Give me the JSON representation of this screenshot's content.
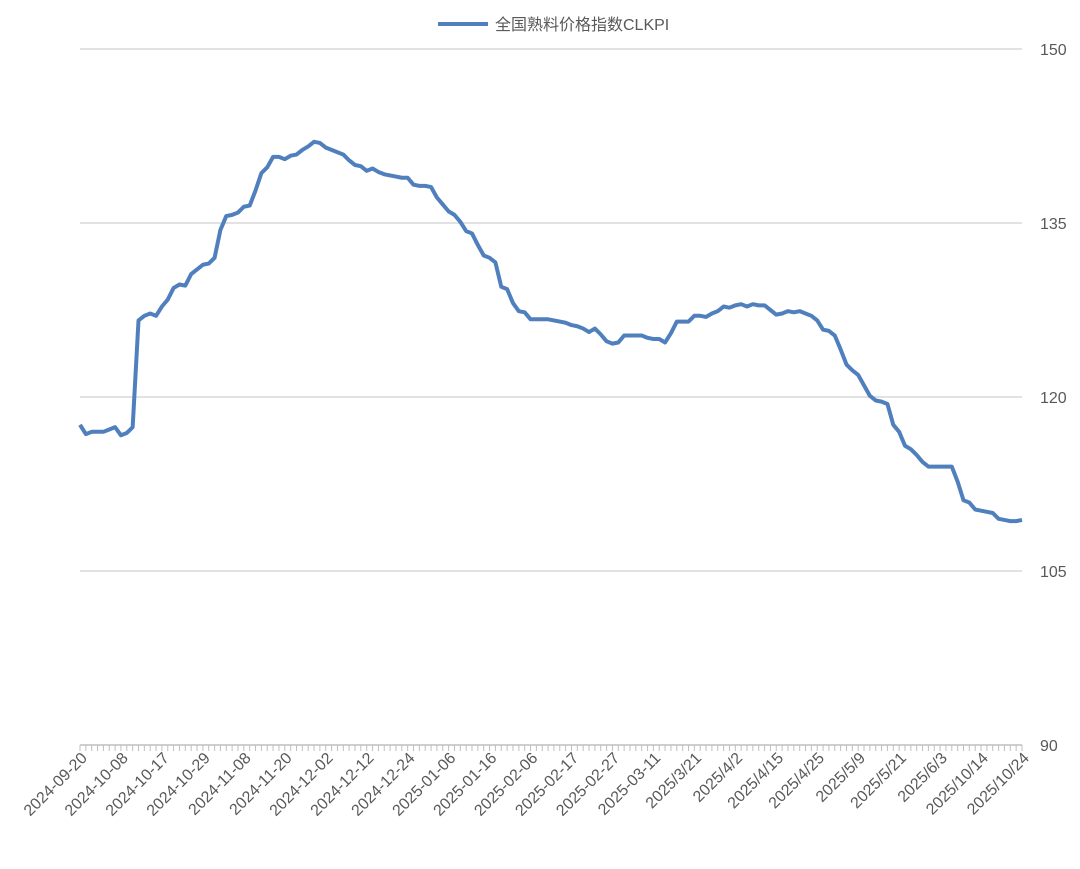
{
  "chart_data": {
    "type": "line",
    "categories": [
      "2024-09-20",
      null,
      null,
      null,
      null,
      null,
      null,
      "2024-10-08",
      null,
      null,
      null,
      null,
      null,
      null,
      "2024-10-17",
      null,
      null,
      null,
      null,
      null,
      null,
      "2024-10-29",
      null,
      null,
      null,
      null,
      null,
      null,
      "2024-11-08",
      null,
      null,
      null,
      null,
      null,
      null,
      "2024-11-20",
      null,
      null,
      null,
      null,
      null,
      null,
      "2024-12-02",
      null,
      null,
      null,
      null,
      null,
      null,
      "2024-12-12",
      null,
      null,
      null,
      null,
      null,
      null,
      "2024-12-24",
      null,
      null,
      null,
      null,
      null,
      null,
      "2025-01-06",
      null,
      null,
      null,
      null,
      null,
      null,
      "2025-01-16",
      null,
      null,
      null,
      null,
      null,
      null,
      "2025-02-06",
      null,
      null,
      null,
      null,
      null,
      null,
      "2025-02-17",
      null,
      null,
      null,
      null,
      null,
      null,
      "2025-02-27",
      null,
      null,
      null,
      null,
      null,
      null,
      "2025-03-11",
      null,
      null,
      null,
      null,
      null,
      null,
      "2025/3/21",
      null,
      null,
      null,
      null,
      null,
      null,
      "2025/4/2",
      null,
      null,
      null,
      null,
      null,
      null,
      "2025/4/15",
      null,
      null,
      null,
      null,
      null,
      null,
      "2025/4/25",
      null,
      null,
      null,
      null,
      null,
      null,
      "2025/5/9",
      null,
      null,
      null,
      null,
      null,
      null,
      "2025/5/21",
      null,
      null,
      null,
      null,
      null,
      null,
      "2025/6/3",
      null,
      null,
      null,
      null,
      null,
      null,
      "2025/10/14",
      null,
      null,
      null,
      null,
      null,
      null,
      "2025/10/24"
    ],
    "series": [
      {
        "name": "全国熟料价格指数CLKPI",
        "color": "#4f7fbd",
        "values": [
          117.6,
          116.8,
          117.0,
          117.0,
          117.0,
          117.2,
          117.4,
          116.7,
          116.9,
          117.4,
          126.6,
          127.0,
          127.2,
          127.0,
          127.8,
          128.4,
          129.4,
          129.7,
          129.6,
          130.6,
          131.0,
          131.4,
          131.5,
          132.0,
          134.4,
          135.6,
          135.7,
          135.9,
          136.4,
          136.5,
          137.8,
          139.3,
          139.8,
          140.7,
          140.7,
          140.5,
          140.8,
          140.9,
          141.3,
          141.6,
          142.0,
          141.9,
          141.5,
          141.3,
          141.1,
          140.9,
          140.4,
          140.0,
          139.9,
          139.5,
          139.7,
          139.4,
          139.2,
          139.1,
          139.0,
          138.9,
          138.9,
          138.3,
          138.2,
          138.2,
          138.1,
          137.2,
          136.6,
          136.0,
          135.7,
          135.1,
          134.3,
          134.1,
          133.1,
          132.2,
          132.0,
          131.6,
          129.5,
          129.3,
          128.1,
          127.4,
          127.3,
          126.7,
          126.7,
          126.7,
          126.7,
          126.6,
          126.5,
          126.4,
          126.2,
          126.1,
          125.9,
          125.6,
          125.9,
          125.4,
          124.8,
          124.6,
          124.7,
          125.3,
          125.3,
          125.3,
          125.3,
          125.1,
          125.0,
          125.0,
          124.7,
          125.5,
          126.5,
          126.5,
          126.5,
          127.0,
          127.0,
          126.9,
          127.2,
          127.4,
          127.8,
          127.7,
          127.9,
          128.0,
          127.8,
          128.0,
          127.9,
          127.9,
          127.5,
          127.1,
          127.2,
          127.4,
          127.3,
          127.4,
          127.2,
          127.0,
          126.6,
          125.8,
          125.7,
          125.3,
          124.1,
          122.8,
          122.3,
          121.9,
          121.0,
          120.1,
          119.7,
          119.6,
          119.4,
          117.6,
          117.0,
          115.8,
          115.5,
          115.0,
          114.4,
          114.0,
          114.0,
          114.0,
          114.0,
          114.0,
          112.7,
          111.1,
          110.9,
          110.3,
          110.2,
          110.1,
          110.0,
          109.5,
          109.4,
          109.3,
          109.3,
          109.4
        ]
      }
    ],
    "ylim": [
      90,
      150
    ],
    "yticks": [
      90,
      105,
      120,
      135,
      150
    ],
    "grid": true
  }
}
